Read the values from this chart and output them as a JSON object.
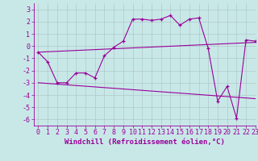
{
  "xlabel": "Windchill (Refroidissement éolien,°C)",
  "xlim": [
    -0.5,
    23
  ],
  "ylim": [
    -6.5,
    3.5
  ],
  "yticks": [
    3,
    2,
    1,
    0,
    -1,
    -2,
    -3,
    -4,
    -5,
    -6
  ],
  "xticks": [
    0,
    1,
    2,
    3,
    4,
    5,
    6,
    7,
    8,
    9,
    10,
    11,
    12,
    13,
    14,
    15,
    16,
    17,
    18,
    19,
    20,
    21,
    22,
    23
  ],
  "main_line_x": [
    0,
    1,
    2,
    3,
    4,
    5,
    6,
    7,
    8,
    9,
    10,
    11,
    12,
    13,
    14,
    15,
    16,
    17,
    18,
    19,
    20,
    21,
    22,
    23
  ],
  "main_line_y": [
    -0.5,
    -1.3,
    -3.0,
    -3.0,
    -2.2,
    -2.2,
    -2.6,
    -0.8,
    -0.1,
    0.4,
    2.2,
    2.2,
    2.1,
    2.2,
    2.5,
    1.7,
    2.2,
    2.3,
    -0.2,
    -4.5,
    -3.3,
    -5.9,
    0.5,
    0.4
  ],
  "upper_line_x": [
    0,
    23
  ],
  "upper_line_y": [
    -0.5,
    0.3
  ],
  "lower_line_x": [
    0,
    23
  ],
  "lower_line_y": [
    -3.0,
    -4.3
  ],
  "line_color": "#990099",
  "bg_color": "#c8e8e8",
  "grid_color": "#b0c8c8",
  "xlabel_fontsize": 6.5,
  "tick_fontsize": 6
}
